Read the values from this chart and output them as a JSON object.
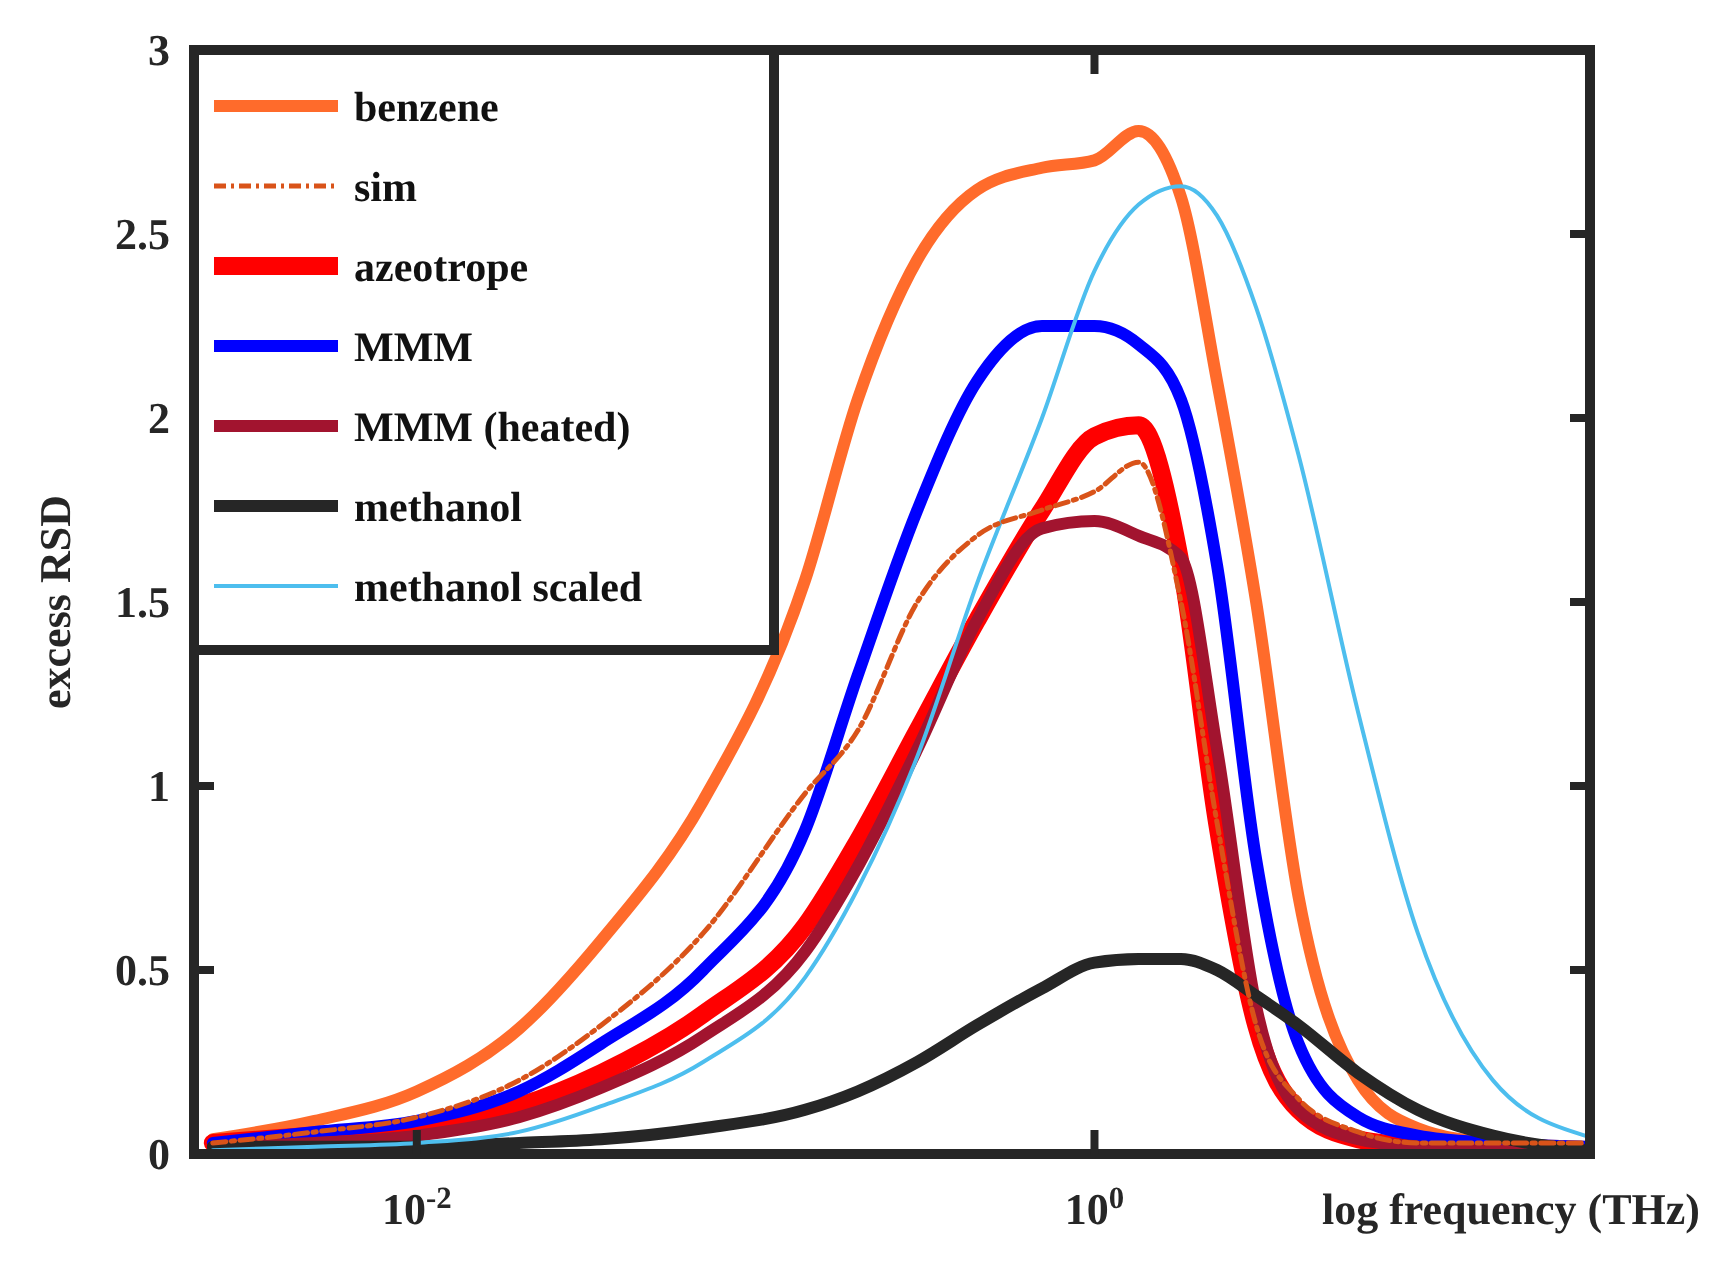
{
  "chart_data": {
    "type": "line",
    "xlabel": "log frequency (THz)",
    "ylabel": "excess RSD",
    "log": "x",
    "xlim": [
      0.0022,
      29
    ],
    "xticks": [
      {
        "value": 0.01,
        "label": "10$^{-2}$"
      },
      {
        "value": 1,
        "label": "10$^{0}$"
      }
    ],
    "ylim": [
      0,
      3
    ],
    "yticks": [
      0,
      0.5,
      1,
      1.5,
      2,
      2.5,
      3
    ],
    "grid": false,
    "legend": "top left",
    "x": [
      0.0025,
      0.005,
      0.01,
      0.02,
      0.035,
      0.07,
      0.14,
      0.2,
      0.3,
      0.45,
      0.7,
      1,
      1.35,
      1.8,
      2.3,
      3,
      4,
      6,
      9,
      15,
      28
    ],
    "series": [
      {
        "name": "benzene",
        "color": "#ff6b2b",
        "values": [
          0.04,
          0.09,
          0.17,
          0.34,
          0.58,
          0.96,
          1.56,
          2.05,
          2.43,
          2.62,
          2.68,
          2.7,
          2.78,
          2.6,
          2.1,
          1.5,
          0.7,
          0.2,
          0.07,
          0.03,
          0.02
        ]
      },
      {
        "name": "sim",
        "color": "#d95319",
        "line_style": "dashed",
        "values": [
          0.03,
          0.06,
          0.1,
          0.2,
          0.35,
          0.6,
          0.98,
          1.15,
          1.5,
          1.68,
          1.75,
          1.8,
          1.88,
          1.5,
          0.9,
          0.35,
          0.15,
          0.06,
          0.03,
          0.03,
          0.03
        ]
      },
      {
        "name": "azeotrope",
        "color": "#ff0000",
        "values": [
          0.03,
          0.05,
          0.07,
          0.13,
          0.22,
          0.38,
          0.62,
          0.85,
          1.15,
          1.45,
          1.75,
          1.95,
          1.98,
          1.6,
          0.9,
          0.35,
          0.12,
          0.04,
          0.02,
          0.01,
          0.0
        ]
      },
      {
        "name": "MMM",
        "color": "#0000ff",
        "values": [
          0.03,
          0.06,
          0.09,
          0.17,
          0.3,
          0.5,
          0.88,
          1.3,
          1.75,
          2.1,
          2.25,
          2.25,
          2.2,
          2.05,
          1.6,
          0.8,
          0.3,
          0.1,
          0.05,
          0.03,
          0.02
        ]
      },
      {
        "name": "MMM (heated)",
        "color": "#a2142f",
        "values": [
          0.02,
          0.03,
          0.05,
          0.1,
          0.18,
          0.32,
          0.55,
          0.78,
          1.1,
          1.45,
          1.7,
          1.72,
          1.68,
          1.62,
          1.1,
          0.4,
          0.12,
          0.04,
          0.02,
          0.01,
          0.0
        ]
      },
      {
        "name": "methanol",
        "color": "#262626",
        "values": [
          0.02,
          0.02,
          0.02,
          0.03,
          0.04,
          0.07,
          0.12,
          0.17,
          0.25,
          0.35,
          0.45,
          0.52,
          0.53,
          0.53,
          0.5,
          0.43,
          0.35,
          0.22,
          0.12,
          0.05,
          0.01
        ]
      },
      {
        "name": "methanol scaled",
        "color": "#4dbeee",
        "values": [
          0.01,
          0.02,
          0.03,
          0.06,
          0.13,
          0.25,
          0.48,
          0.72,
          1.08,
          1.55,
          2.0,
          2.4,
          2.58,
          2.63,
          2.55,
          2.3,
          1.9,
          1.2,
          0.6,
          0.2,
          0.05
        ]
      }
    ]
  }
}
